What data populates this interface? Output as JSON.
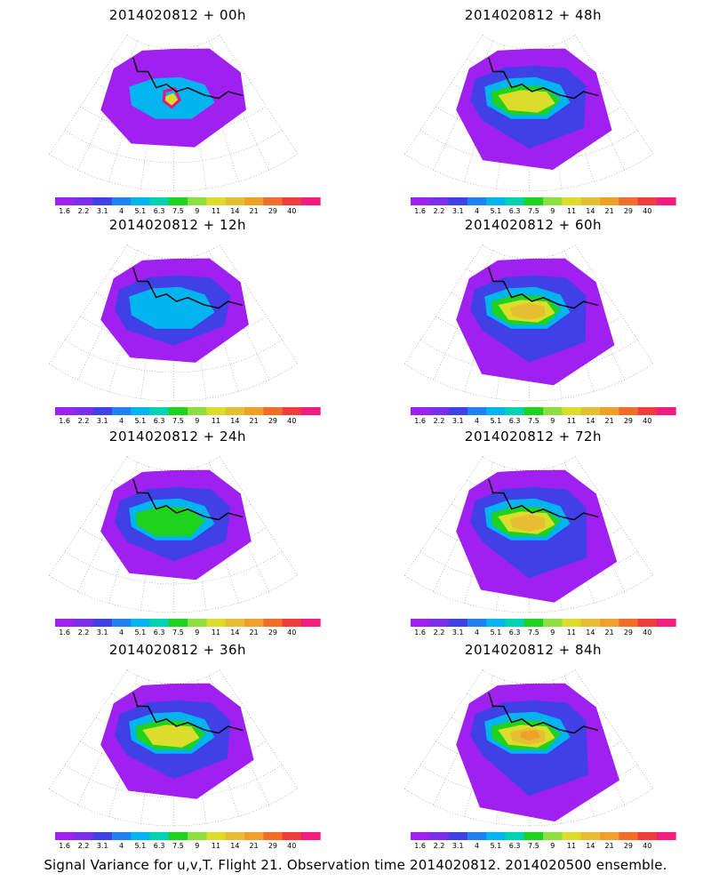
{
  "caption": "Signal Variance for u,v,T. Flight 21. Observation time 2014020812. 2014020500 ensemble.",
  "colorbar": {
    "ticks": [
      "1.6",
      "2.2",
      "3.1",
      "4",
      "5.1",
      "6.3",
      "7.5",
      "9",
      "11",
      "14",
      "21",
      "29",
      "40"
    ],
    "colors": [
      "#a020f0",
      "#7a30e8",
      "#3f40e6",
      "#1e82f0",
      "#00b4f0",
      "#00d2b4",
      "#1ed21e",
      "#8be040",
      "#dcdc2a",
      "#e6be32",
      "#f0a02a",
      "#f06e28",
      "#f03c3c",
      "#f01e82"
    ]
  },
  "palette": {
    "outline": "#e8157a",
    "coast": "#000000",
    "grid": "#9a9a9a"
  },
  "panels": [
    {
      "title": "2014020812 + 00h",
      "level": 0
    },
    {
      "title": "2014020812 + 48h",
      "level": 4
    },
    {
      "title": "2014020812 + 12h",
      "level": 1
    },
    {
      "title": "2014020812 + 60h",
      "level": 5
    },
    {
      "title": "2014020812 + 24h",
      "level": 2
    },
    {
      "title": "2014020812 + 72h",
      "level": 6
    },
    {
      "title": "2014020812 + 36h",
      "level": 3
    },
    {
      "title": "2014020812 + 84h",
      "level": 7
    }
  ]
}
